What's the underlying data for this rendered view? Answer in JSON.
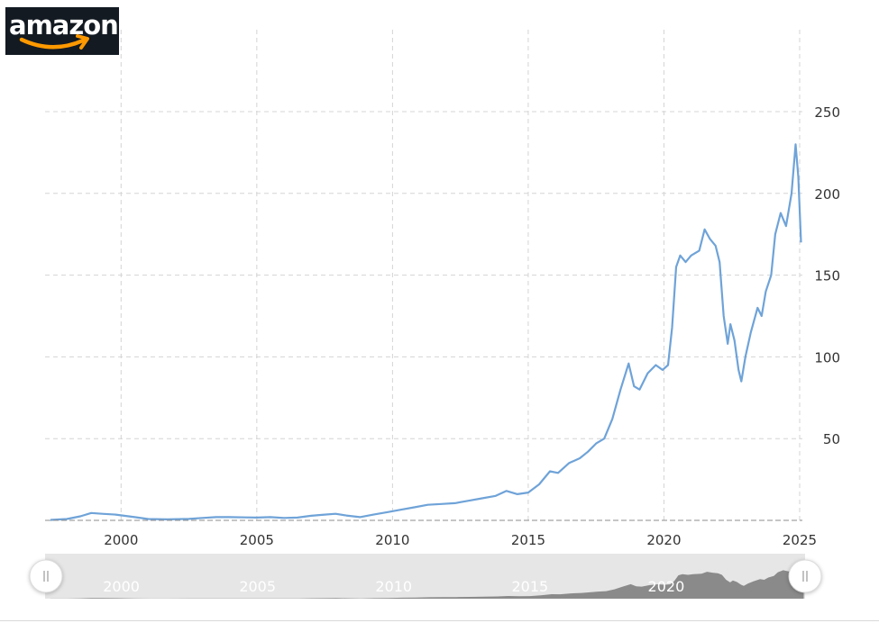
{
  "brand": {
    "logo_text": "amazon",
    "logo_bg": "#131a22",
    "smile_color": "#ff9900"
  },
  "colors": {
    "line": "#6fa3d8",
    "grid": "#d4d4d4",
    "navigator_fill": "#8a8a8a",
    "navigator_bg": "#e6e6e6"
  },
  "chart_data": {
    "type": "line",
    "title": "",
    "xlabel": "",
    "ylabel": "",
    "xlim": [
      1997.2,
      2025.1
    ],
    "ylim": [
      0,
      250
    ],
    "x_ticks": [
      2000,
      2005,
      2010,
      2015,
      2020,
      2025
    ],
    "x_tick_labels": [
      "2000",
      "2005",
      "2010",
      "2015",
      "2020",
      "2025"
    ],
    "y_ticks": [
      50,
      100,
      150,
      200,
      250
    ],
    "y_tick_labels": [
      "50",
      "100",
      "150",
      "200",
      "250"
    ],
    "grid": true,
    "y_axis_side": "right",
    "navigator": {
      "labels": [
        "2000",
        "2005",
        "2010",
        "2015",
        "2020"
      ],
      "handle_icon": "grip-handle-icon"
    },
    "series": [
      {
        "x": [
          1997.4,
          1998.0,
          1998.5,
          1998.9,
          1999.3,
          1999.8,
          2000.5,
          2001.0,
          2001.7,
          2002.5,
          2003.0,
          2003.5,
          2004.0,
          2004.6,
          2005.0,
          2005.5,
          2006.0,
          2006.5,
          2007.0,
          2007.5,
          2007.9,
          2008.3,
          2008.8,
          2009.3,
          2009.8,
          2010.3,
          2010.8,
          2011.3,
          2011.8,
          2012.3,
          2012.8,
          2013.3,
          2013.8,
          2014.2,
          2014.6,
          2015.0,
          2015.4,
          2015.8,
          2016.1,
          2016.5,
          2016.9,
          2017.2,
          2017.5,
          2017.8,
          2018.1,
          2018.4,
          2018.7,
          2018.9,
          2019.1,
          2019.4,
          2019.7,
          2019.95,
          2020.15,
          2020.3,
          2020.45,
          2020.6,
          2020.8,
          2021.0,
          2021.3,
          2021.5,
          2021.7,
          2021.9,
          2022.05,
          2022.2,
          2022.35,
          2022.45,
          2022.6,
          2022.75,
          2022.85,
          2023.0,
          2023.2,
          2023.45,
          2023.6,
          2023.75,
          2023.95,
          2024.1,
          2024.3,
          2024.5,
          2024.7,
          2024.85,
          2024.95,
          2025.05
        ],
        "values": [
          0.3,
          0.8,
          2.5,
          4.5,
          4.0,
          3.5,
          2.0,
          0.8,
          0.6,
          0.9,
          1.5,
          2.0,
          2.0,
          1.8,
          1.7,
          2.0,
          1.5,
          1.7,
          2.8,
          3.5,
          4.0,
          3.0,
          2.0,
          3.5,
          5.0,
          6.5,
          8.0,
          9.5,
          10.0,
          10.5,
          12.0,
          13.5,
          15.0,
          18.0,
          16.0,
          17.0,
          22.0,
          30.0,
          29.0,
          35.0,
          38.0,
          42.0,
          47.0,
          50.0,
          62.0,
          80.0,
          96.0,
          82.0,
          80.0,
          90.0,
          95.0,
          92.0,
          95.0,
          118.0,
          155.0,
          162.0,
          158.0,
          162.0,
          165.0,
          178.0,
          172.0,
          168.0,
          158.0,
          125.0,
          108.0,
          120.0,
          110.0,
          92.0,
          85.0,
          100.0,
          115.0,
          130.0,
          125.0,
          140.0,
          150.0,
          175.0,
          188.0,
          180.0,
          200.0,
          230.0,
          210.0,
          170.0
        ]
      }
    ]
  }
}
